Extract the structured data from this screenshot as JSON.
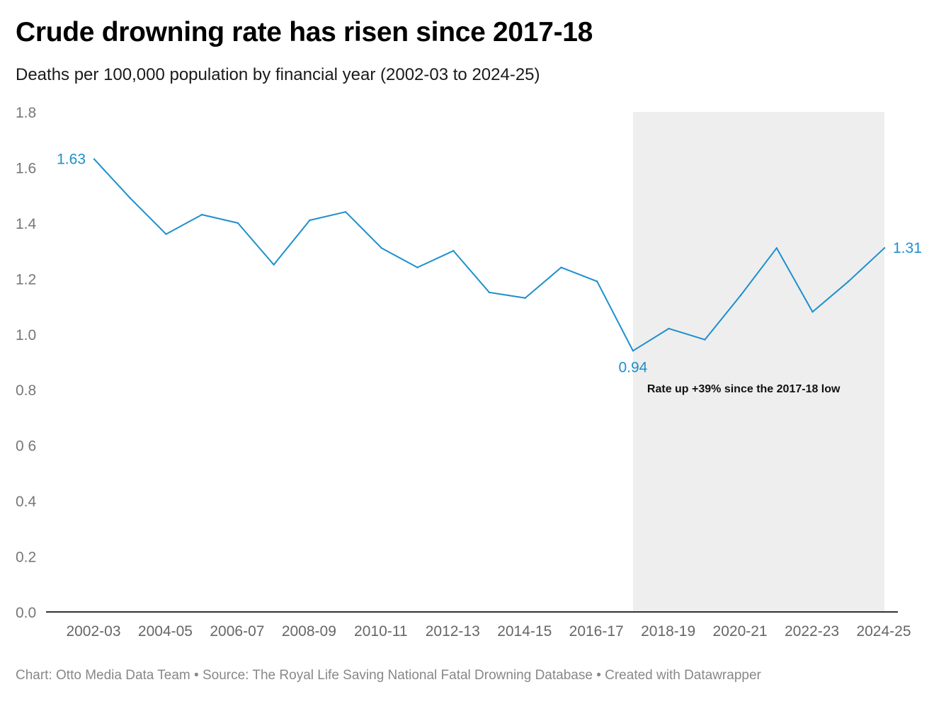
{
  "header": {
    "title": "Crude drowning rate has risen since 2017-18",
    "subtitle": "Deaths per 100,000 population by financial year (2002-03 to 2024-25)"
  },
  "footer": {
    "text": "Chart: Otto Media Data Team • Source: The Royal Life Saving National Fatal Drowning Database • Created with Datawrapper"
  },
  "colors": {
    "line": "#1d8fce",
    "highlight_band": "#eeeeee",
    "axis": "#333333"
  },
  "chart_data": {
    "type": "line",
    "title": "Crude drowning rate has risen since 2017-18",
    "subtitle": "Deaths per 100,000 population by financial year (2002-03 to 2024-25)",
    "xlabel": "",
    "ylabel": "",
    "ylim": [
      0,
      1.8
    ],
    "grid": false,
    "y_ticks": [
      {
        "value": 0.0,
        "label": "0.0"
      },
      {
        "value": 0.2,
        "label": "0.2"
      },
      {
        "value": 0.4,
        "label": "0.4"
      },
      {
        "value": 0.6,
        "label": "0 6"
      },
      {
        "value": 0.8,
        "label": "0.8"
      },
      {
        "value": 1.0,
        "label": "1.0"
      },
      {
        "value": 1.2,
        "label": "1.2"
      },
      {
        "value": 1.4,
        "label": "1.4"
      },
      {
        "value": 1.6,
        "label": "1.6"
      },
      {
        "value": 1.8,
        "label": "1.8"
      }
    ],
    "x": [
      "2002-03",
      "2003-04",
      "2004-05",
      "2005-06",
      "2006-07",
      "2007-08",
      "2008-09",
      "2009-10",
      "2010-11",
      "2011-12",
      "2012-13",
      "2013-14",
      "2014-15",
      "2015-16",
      "2016-17",
      "2017-18",
      "2018-19",
      "2019-20",
      "2020-21",
      "2021-22",
      "2022-23",
      "2023-24",
      "2024-25"
    ],
    "x_tick_labels": [
      "2002-03",
      "2004-05",
      "2006-07",
      "2008-09",
      "2010-11",
      "2012-13",
      "2014-15",
      "2016-17",
      "2018-19",
      "2020-21",
      "2022-23",
      "2024-25"
    ],
    "series": [
      {
        "name": "Crude drowning rate",
        "values": [
          1.63,
          1.49,
          1.36,
          1.43,
          1.4,
          1.25,
          1.41,
          1.44,
          1.31,
          1.24,
          1.3,
          1.15,
          1.13,
          1.24,
          1.19,
          0.94,
          1.02,
          0.98,
          1.14,
          1.31,
          1.08,
          1.19,
          1.31
        ]
      }
    ],
    "data_labels": [
      {
        "x": "2002-03",
        "text": "1.63",
        "position": "left"
      },
      {
        "x": "2017-18",
        "text": "0.94",
        "position": "below"
      },
      {
        "x": "2024-25",
        "text": "1.31",
        "position": "right"
      }
    ],
    "highlight_range": {
      "from": "2017-18",
      "to": "2024-25"
    },
    "annotations": [
      {
        "text": "Rate up +39% since the 2017-18 low",
        "x": "2017-18",
        "y": 0.8
      }
    ]
  }
}
